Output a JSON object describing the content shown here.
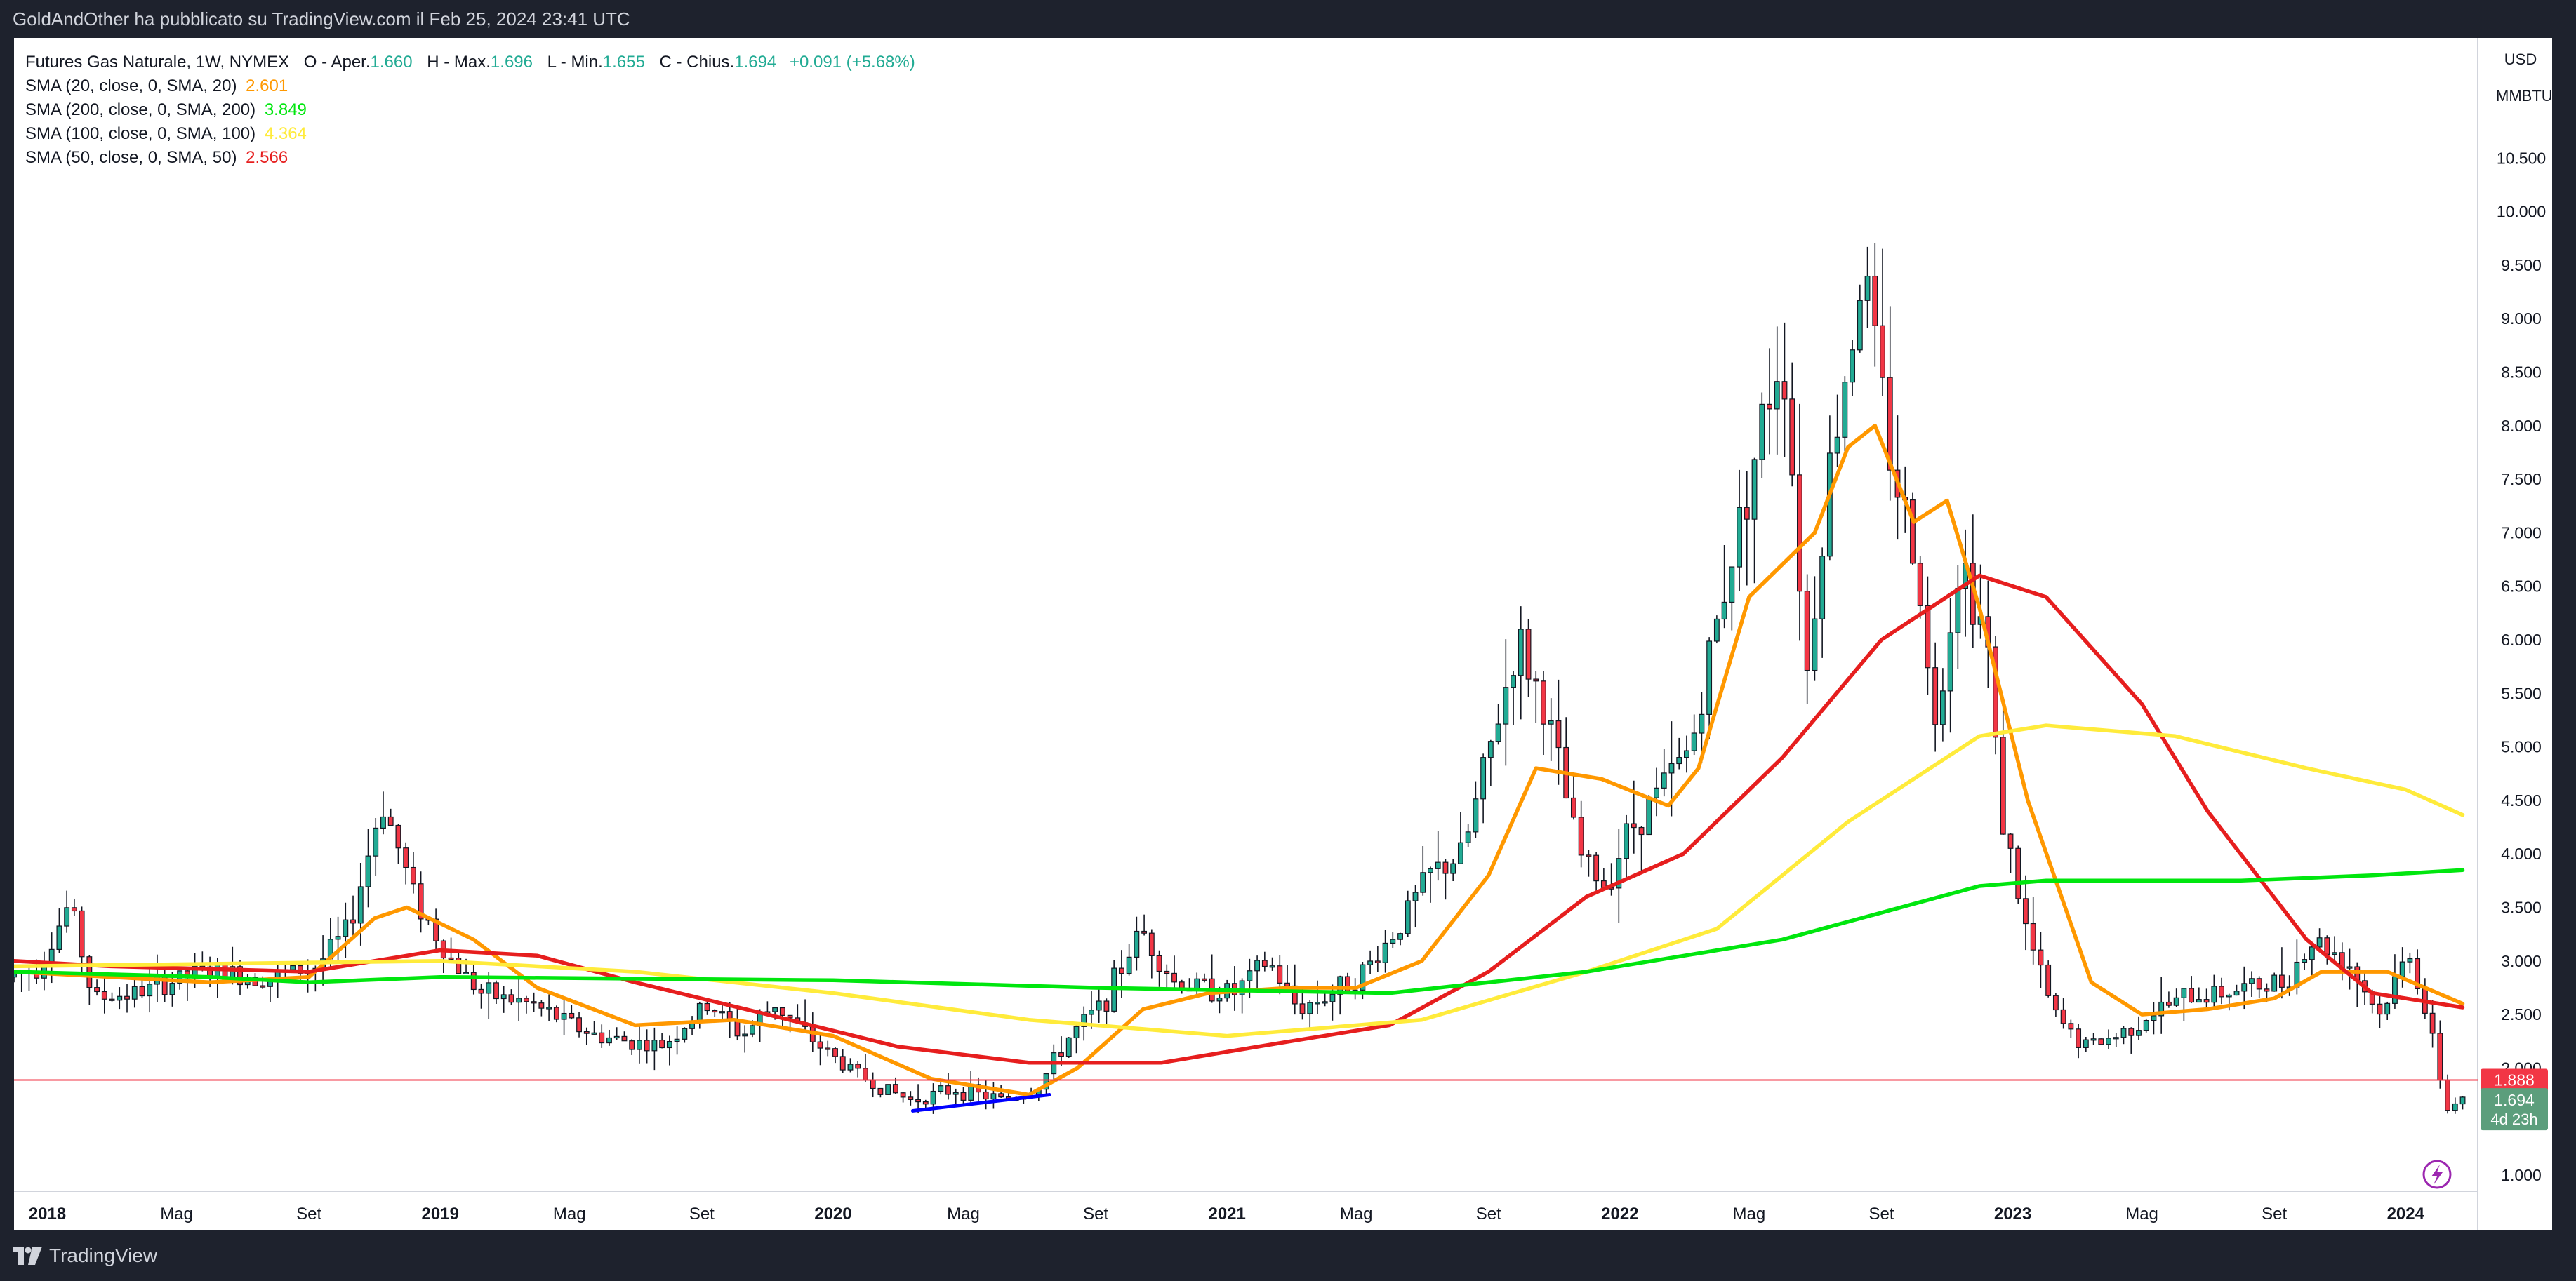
{
  "header": {
    "publisher": "GoldAndOther ha pubblicato su TradingView.com il Feb 25, 2024 23:41 UTC"
  },
  "legend": {
    "symbol": "Futures Gas Naturale, 1W, NYMEX",
    "open_label": "O - Aper.",
    "open": "1.660",
    "high_label": "H - Max.",
    "high": "1.696",
    "low_label": "L - Min.",
    "low": "1.655",
    "close_label": "C - Chius.",
    "close": "1.694",
    "change": "+0.091 (+5.68%)",
    "indicators": [
      {
        "label": "SMA (20, close, 0, SMA, 20)",
        "value": "2.601",
        "color": "#ff9800"
      },
      {
        "label": "SMA (200, close, 0, SMA, 200)",
        "value": "3.849",
        "color": "#00e60e"
      },
      {
        "label": "SMA (100, close, 0, SMA, 100)",
        "value": "4.364",
        "color": "#ffeb3b"
      },
      {
        "label": "SMA (50, close, 0, SMA, 50)",
        "value": "2.566",
        "color": "#e61e1e"
      }
    ]
  },
  "price_axis": {
    "currency": "USD",
    "unit": "MMBTU"
  },
  "footer": {
    "brand": "TradingView"
  },
  "colors": {
    "up": "#22ab94",
    "down": "#f23645",
    "horizontal_line": "#f23645",
    "trendline": "#0000ff",
    "current_price_badge": "#5c9e7c"
  },
  "icons": {
    "brand": "tradingview-logo-icon",
    "replay": "lightning-circle-icon"
  },
  "chart_data": {
    "type": "candlestick",
    "x_axis_labels": [
      {
        "date": "2018-01-01",
        "label": "2018"
      },
      {
        "date": "2018-05-01",
        "label": "Mag"
      },
      {
        "date": "2018-09-01",
        "label": "Set"
      },
      {
        "date": "2019-01-01",
        "label": "2019"
      },
      {
        "date": "2019-05-01",
        "label": "Mag"
      },
      {
        "date": "2019-09-01",
        "label": "Set"
      },
      {
        "date": "2020-01-01",
        "label": "2020"
      },
      {
        "date": "2020-05-01",
        "label": "Mag"
      },
      {
        "date": "2020-09-01",
        "label": "Set"
      },
      {
        "date": "2021-01-01",
        "label": "2021"
      },
      {
        "date": "2021-05-01",
        "label": "Mag"
      },
      {
        "date": "2021-09-01",
        "label": "Set"
      },
      {
        "date": "2022-01-01",
        "label": "2022"
      },
      {
        "date": "2022-05-01",
        "label": "Mag"
      },
      {
        "date": "2022-09-01",
        "label": "Set"
      },
      {
        "date": "2023-01-01",
        "label": "2023"
      },
      {
        "date": "2023-05-01",
        "label": "Mag"
      },
      {
        "date": "2023-09-01",
        "label": "Set"
      },
      {
        "date": "2024-01-01",
        "label": "2024"
      }
    ],
    "y_ticks": [
      "1.000",
      "2.000",
      "2.500",
      "3.000",
      "3.500",
      "4.000",
      "4.500",
      "5.000",
      "5.500",
      "6.000",
      "6.500",
      "7.000",
      "7.500",
      "8.000",
      "8.500",
      "9.000",
      "9.500",
      "10.000",
      "10.500"
    ],
    "price_anchors": [
      [
        "2017-12-01",
        2.85
      ],
      [
        "2018-01-01",
        2.95
      ],
      [
        "2018-01-29",
        3.55
      ],
      [
        "2018-02-19",
        2.65
      ],
      [
        "2018-04-01",
        2.7
      ],
      [
        "2018-06-01",
        2.9
      ],
      [
        "2018-08-01",
        2.85
      ],
      [
        "2018-09-15",
        2.95
      ],
      [
        "2018-10-15",
        3.3
      ],
      [
        "2018-11-15",
        4.5
      ],
      [
        "2018-12-15",
        3.6
      ],
      [
        "2019-01-15",
        3.05
      ],
      [
        "2019-02-15",
        2.7
      ],
      [
        "2019-04-01",
        2.6
      ],
      [
        "2019-06-01",
        2.3
      ],
      [
        "2019-07-01",
        2.25
      ],
      [
        "2019-08-01",
        2.2
      ],
      [
        "2019-09-15",
        2.6
      ],
      [
        "2019-10-15",
        2.3
      ],
      [
        "2019-11-15",
        2.6
      ],
      [
        "2019-12-15",
        2.3
      ],
      [
        "2020-01-15",
        2.05
      ],
      [
        "2020-02-15",
        1.85
      ],
      [
        "2020-03-20",
        1.7
      ],
      [
        "2020-05-01",
        1.8
      ],
      [
        "2020-06-15",
        1.7
      ],
      [
        "2020-07-15",
        1.8
      ],
      [
        "2020-08-15",
        2.3
      ],
      [
        "2020-09-15",
        2.6
      ],
      [
        "2020-10-20",
        3.3
      ],
      [
        "2020-11-20",
        2.8
      ],
      [
        "2021-01-15",
        2.7
      ],
      [
        "2021-02-15",
        3.0
      ],
      [
        "2021-03-15",
        2.55
      ],
      [
        "2021-04-15",
        2.7
      ],
      [
        "2021-05-15",
        2.9
      ],
      [
        "2021-06-15",
        3.3
      ],
      [
        "2021-07-15",
        3.8
      ],
      [
        "2021-08-15",
        4.0
      ],
      [
        "2021-09-15",
        5.2
      ],
      [
        "2021-10-05",
        6.0
      ],
      [
        "2021-11-01",
        5.3
      ],
      [
        "2021-12-01",
        4.0
      ],
      [
        "2021-12-25",
        3.7
      ],
      [
        "2022-01-15",
        4.2
      ],
      [
        "2022-02-15",
        4.6
      ],
      [
        "2022-03-15",
        5.0
      ],
      [
        "2022-04-15",
        6.5
      ],
      [
        "2022-05-15",
        7.8
      ],
      [
        "2022-06-08",
        8.8
      ],
      [
        "2022-07-01",
        5.7
      ],
      [
        "2022-07-20",
        7.5
      ],
      [
        "2022-08-22",
        9.5
      ],
      [
        "2022-09-15",
        7.8
      ],
      [
        "2022-10-15",
        6.5
      ],
      [
        "2022-10-25",
        5.1
      ],
      [
        "2022-11-20",
        6.8
      ],
      [
        "2022-12-15",
        6.0
      ],
      [
        "2022-12-28",
        4.4
      ],
      [
        "2023-01-20",
        3.3
      ],
      [
        "2023-02-15",
        2.5
      ],
      [
        "2023-03-15",
        2.2
      ],
      [
        "2023-04-15",
        2.3
      ],
      [
        "2023-05-15",
        2.5
      ],
      [
        "2023-06-15",
        2.65
      ],
      [
        "2023-07-15",
        2.7
      ],
      [
        "2023-08-15",
        2.75
      ],
      [
        "2023-09-15",
        2.8
      ],
      [
        "2023-10-15",
        3.2
      ],
      [
        "2023-11-15",
        3.0
      ],
      [
        "2023-12-15",
        2.5
      ],
      [
        "2024-01-12",
        3.1
      ],
      [
        "2024-01-22",
        2.7
      ],
      [
        "2024-02-05",
        2.1
      ],
      [
        "2024-02-16",
        1.61
      ],
      [
        "2024-02-23",
        1.694
      ]
    ],
    "sma": [
      {
        "period": 20,
        "color": "#ff9800",
        "points": [
          [
            "2017-12-01",
            2.9
          ],
          [
            "2018-06-01",
            2.8
          ],
          [
            "2018-09-01",
            2.85
          ],
          [
            "2018-11-01",
            3.4
          ],
          [
            "2018-12-01",
            3.5
          ],
          [
            "2019-02-01",
            3.2
          ],
          [
            "2019-04-01",
            2.75
          ],
          [
            "2019-07-01",
            2.4
          ],
          [
            "2019-10-01",
            2.45
          ],
          [
            "2020-01-01",
            2.3
          ],
          [
            "2020-04-01",
            1.9
          ],
          [
            "2020-07-01",
            1.75
          ],
          [
            "2020-08-15",
            2.0
          ],
          [
            "2020-10-15",
            2.55
          ],
          [
            "2020-12-15",
            2.7
          ],
          [
            "2021-03-01",
            2.75
          ],
          [
            "2021-05-01",
            2.75
          ],
          [
            "2021-07-01",
            3.0
          ],
          [
            "2021-09-01",
            3.8
          ],
          [
            "2021-10-15",
            4.8
          ],
          [
            "2021-12-15",
            4.7
          ],
          [
            "2022-02-15",
            4.45
          ],
          [
            "2022-03-15",
            4.8
          ],
          [
            "2022-05-01",
            6.4
          ],
          [
            "2022-07-01",
            7.0
          ],
          [
            "2022-08-01",
            7.8
          ],
          [
            "2022-08-26",
            8.0
          ],
          [
            "2022-10-01",
            7.1
          ],
          [
            "2022-11-01",
            7.3
          ],
          [
            "2022-12-01",
            6.3
          ],
          [
            "2023-01-15",
            4.5
          ],
          [
            "2023-03-15",
            2.8
          ],
          [
            "2023-05-01",
            2.5
          ],
          [
            "2023-07-01",
            2.55
          ],
          [
            "2023-09-01",
            2.65
          ],
          [
            "2023-10-15",
            2.9
          ],
          [
            "2023-12-15",
            2.9
          ],
          [
            "2024-02-23",
            2.601
          ]
        ]
      },
      {
        "period": 50,
        "color": "#e61e1e",
        "points": [
          [
            "2017-12-01",
            3.0
          ],
          [
            "2018-03-01",
            2.95
          ],
          [
            "2018-09-01",
            2.9
          ],
          [
            "2019-01-01",
            3.1
          ],
          [
            "2019-04-01",
            3.05
          ],
          [
            "2019-07-01",
            2.8
          ],
          [
            "2019-11-01",
            2.5
          ],
          [
            "2020-03-01",
            2.2
          ],
          [
            "2020-07-01",
            2.05
          ],
          [
            "2020-11-01",
            2.05
          ],
          [
            "2021-03-01",
            2.25
          ],
          [
            "2021-06-01",
            2.4
          ],
          [
            "2021-09-01",
            2.9
          ],
          [
            "2021-12-01",
            3.6
          ],
          [
            "2022-03-01",
            4.0
          ],
          [
            "2022-06-01",
            4.9
          ],
          [
            "2022-09-01",
            6.0
          ],
          [
            "2022-12-01",
            6.6
          ],
          [
            "2023-02-01",
            6.4
          ],
          [
            "2023-05-01",
            5.4
          ],
          [
            "2023-07-01",
            4.4
          ],
          [
            "2023-10-01",
            3.2
          ],
          [
            "2023-12-01",
            2.7
          ],
          [
            "2024-02-23",
            2.566
          ]
        ]
      },
      {
        "period": 100,
        "color": "#ffeb3b",
        "points": [
          [
            "2017-12-01",
            2.95
          ],
          [
            "2019-01-01",
            3.0
          ],
          [
            "2019-07-01",
            2.9
          ],
          [
            "2020-01-01",
            2.7
          ],
          [
            "2020-07-01",
            2.45
          ],
          [
            "2021-01-01",
            2.3
          ],
          [
            "2021-07-01",
            2.45
          ],
          [
            "2021-12-01",
            2.9
          ],
          [
            "2022-04-01",
            3.3
          ],
          [
            "2022-08-01",
            4.3
          ],
          [
            "2022-12-01",
            5.1
          ],
          [
            "2023-02-01",
            5.2
          ],
          [
            "2023-06-01",
            5.1
          ],
          [
            "2023-10-01",
            4.8
          ],
          [
            "2024-01-01",
            4.6
          ],
          [
            "2024-02-23",
            4.364
          ]
        ]
      },
      {
        "period": 200,
        "color": "#00e60e",
        "points": [
          [
            "2017-12-01",
            2.9
          ],
          [
            "2018-06-01",
            2.85
          ],
          [
            "2018-09-01",
            2.8
          ],
          [
            "2019-01-01",
            2.85
          ],
          [
            "2020-01-01",
            2.82
          ],
          [
            "2020-09-01",
            2.75
          ],
          [
            "2021-06-01",
            2.7
          ],
          [
            "2021-12-01",
            2.9
          ],
          [
            "2022-06-01",
            3.2
          ],
          [
            "2022-12-01",
            3.7
          ],
          [
            "2023-02-01",
            3.75
          ],
          [
            "2023-08-01",
            3.75
          ],
          [
            "2023-12-01",
            3.8
          ],
          [
            "2024-02-23",
            3.849
          ]
        ]
      }
    ],
    "horizontal_line": {
      "price": 1.888,
      "label": "1.888"
    },
    "trendline": {
      "from": [
        "2020-03-15",
        1.6
      ],
      "to": [
        "2020-07-20",
        1.75
      ]
    },
    "current_price": {
      "label": "1.694",
      "countdown": "4d 23h",
      "price": 1.694
    }
  }
}
